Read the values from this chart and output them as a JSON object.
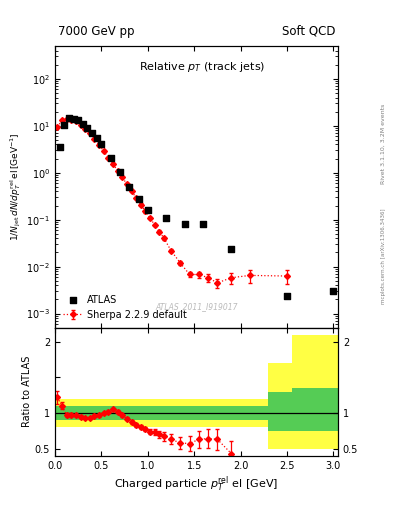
{
  "title_left": "7000 GeV pp",
  "title_right": "Soft QCD",
  "watermark": "ATLAS_2011_I919017",
  "rivet_label": "Rivet 3.1.10, 3.2M events",
  "mcplots_label": "mcplots.cern.ch [arXiv:1306.3436]",
  "atlas_x": [
    0.05,
    0.1,
    0.15,
    0.2,
    0.25,
    0.3,
    0.35,
    0.4,
    0.45,
    0.5,
    0.6,
    0.7,
    0.8,
    0.9,
    1.0,
    1.2,
    1.4,
    1.6,
    1.9,
    2.5,
    3.0
  ],
  "atlas_y": [
    3.5,
    10.5,
    14.5,
    14.0,
    13.0,
    11.0,
    9.2,
    7.2,
    5.5,
    4.0,
    2.1,
    1.05,
    0.5,
    0.28,
    0.16,
    0.11,
    0.082,
    0.08,
    0.024,
    0.0024,
    0.003
  ],
  "sherpa_x": [
    0.025,
    0.075,
    0.125,
    0.175,
    0.225,
    0.275,
    0.325,
    0.375,
    0.425,
    0.475,
    0.525,
    0.575,
    0.625,
    0.675,
    0.725,
    0.775,
    0.825,
    0.875,
    0.925,
    0.975,
    1.025,
    1.075,
    1.125,
    1.175,
    1.25,
    1.35,
    1.45,
    1.55,
    1.65,
    1.75,
    1.9,
    2.1,
    2.5
  ],
  "sherpa_y": [
    9.5,
    13.0,
    14.0,
    13.5,
    12.5,
    10.5,
    8.7,
    6.9,
    5.3,
    3.9,
    2.9,
    2.1,
    1.55,
    1.1,
    0.8,
    0.57,
    0.41,
    0.29,
    0.21,
    0.15,
    0.108,
    0.077,
    0.056,
    0.04,
    0.022,
    0.012,
    0.0068,
    0.0068,
    0.0058,
    0.0045,
    0.0058,
    0.0065,
    0.0063
  ],
  "sherpa_yerr": [
    0.4,
    0.35,
    0.3,
    0.3,
    0.25,
    0.2,
    0.18,
    0.15,
    0.12,
    0.1,
    0.08,
    0.06,
    0.05,
    0.04,
    0.03,
    0.025,
    0.02,
    0.015,
    0.012,
    0.009,
    0.007,
    0.005,
    0.004,
    0.003,
    0.0018,
    0.001,
    0.0008,
    0.001,
    0.001,
    0.001,
    0.0015,
    0.002,
    0.002
  ],
  "ratio_x": [
    0.025,
    0.075,
    0.125,
    0.175,
    0.225,
    0.275,
    0.325,
    0.375,
    0.425,
    0.475,
    0.525,
    0.575,
    0.625,
    0.675,
    0.725,
    0.775,
    0.825,
    0.875,
    0.925,
    0.975,
    1.025,
    1.075,
    1.125,
    1.175,
    1.25,
    1.35,
    1.45,
    1.55,
    1.65,
    1.75,
    1.9
  ],
  "ratio_y": [
    1.22,
    1.1,
    0.97,
    0.97,
    0.97,
    0.95,
    0.93,
    0.93,
    0.96,
    0.97,
    1.0,
    1.02,
    1.05,
    1.02,
    0.97,
    0.92,
    0.87,
    0.83,
    0.8,
    0.78,
    0.74,
    0.73,
    0.7,
    0.67,
    0.63,
    0.58,
    0.57,
    0.63,
    0.64,
    0.63,
    0.43
  ],
  "ratio_yerr": [
    0.09,
    0.05,
    0.03,
    0.03,
    0.02,
    0.02,
    0.02,
    0.02,
    0.02,
    0.02,
    0.02,
    0.02,
    0.02,
    0.02,
    0.02,
    0.02,
    0.025,
    0.025,
    0.03,
    0.03,
    0.04,
    0.04,
    0.05,
    0.06,
    0.07,
    0.08,
    0.1,
    0.12,
    0.13,
    0.15,
    0.18
  ],
  "xlim": [
    0.0,
    3.05
  ],
  "ylim_main": [
    0.0005,
    500
  ],
  "ylim_ratio": [
    0.4,
    2.2
  ],
  "atlas_color": "black",
  "sherpa_color": "red"
}
